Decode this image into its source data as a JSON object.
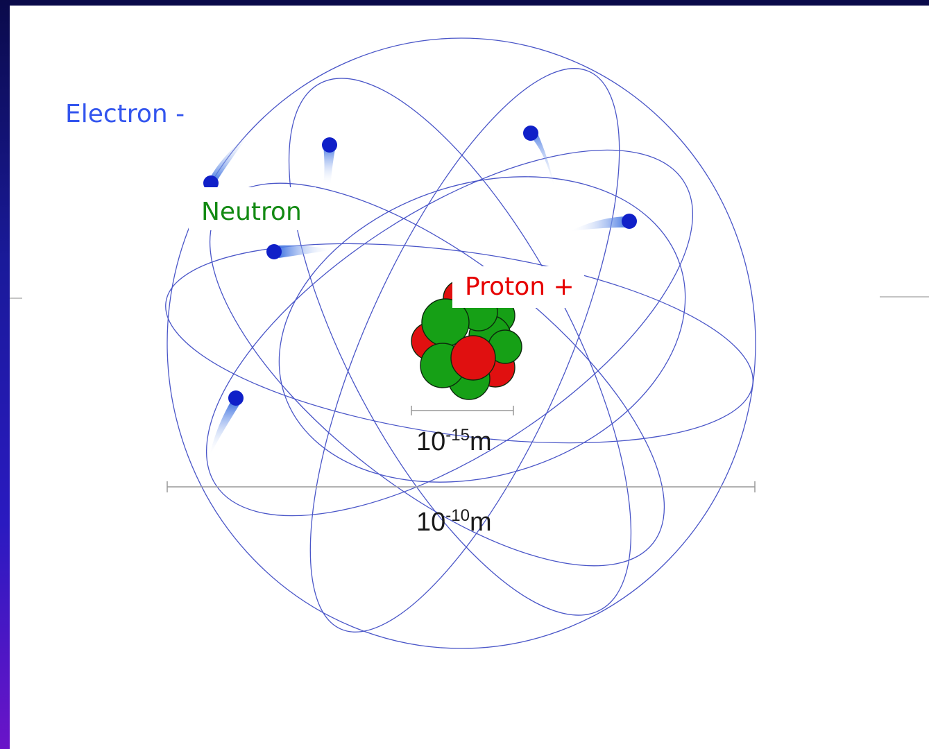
{
  "labels": {
    "electron": "Electron -",
    "neutron": "Neutron",
    "proton": "Proton +"
  },
  "scale_bars": {
    "nucleus": {
      "base": "10",
      "exponent": "-15",
      "unit": "m"
    },
    "atom": {
      "base": "10",
      "exponent": "-10",
      "unit": "m"
    }
  },
  "colors": {
    "electron_label": "#3355ee",
    "neutron_label": "#138a13",
    "proton_label": "#e60000",
    "orbit": "#4a56c8",
    "electron": "#1020c8",
    "neutron": "#16a016",
    "proton": "#e01010",
    "scale_bar": "#999999"
  },
  "icons": {
    "electron": "blue-dot-with-motion-trail",
    "nucleus": "cluster-of-red-and-green-spheres"
  }
}
